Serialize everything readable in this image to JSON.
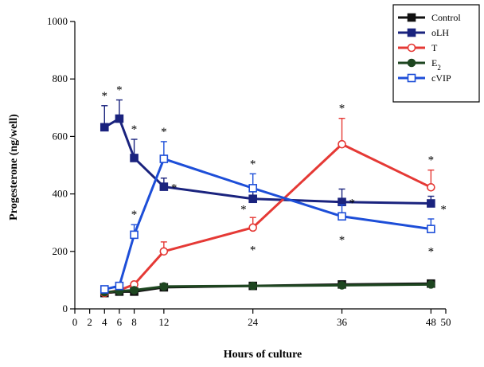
{
  "chart_data": {
    "type": "line",
    "title": "",
    "xlabel": "Hours of culture",
    "ylabel": "Progesterone (ng/well)",
    "xlim": [
      0,
      50
    ],
    "ylim": [
      0,
      1000
    ],
    "xticks": [
      0,
      2,
      4,
      6,
      8,
      12,
      24,
      36,
      48,
      50
    ],
    "yticks": [
      0,
      200,
      400,
      600,
      800,
      1000
    ],
    "xtick_labels": [
      "0",
      "2",
      "4",
      "6",
      "8",
      "12",
      "24",
      "36",
      "48",
      "50"
    ],
    "ytick_labels": [
      "0",
      "200",
      "400",
      "600",
      "800",
      "1000"
    ],
    "grid": false,
    "legend_position": "top-right",
    "series": [
      {
        "name": "Control",
        "color": "#111111",
        "marker": "filled-square",
        "x": [
          4,
          6,
          8,
          12,
          24,
          36,
          48
        ],
        "y": [
          55,
          60,
          60,
          75,
          80,
          85,
          88
        ],
        "err": [
          5,
          5,
          5,
          8,
          8,
          6,
          6
        ],
        "sig": [
          false,
          false,
          false,
          false,
          false,
          false,
          false
        ]
      },
      {
        "name": "oLH",
        "color": "#1a237e",
        "marker": "filled-square",
        "x": [
          4,
          6,
          8,
          12,
          24,
          36,
          48
        ],
        "y": [
          632,
          662,
          525,
          425,
          383,
          372,
          367
        ],
        "err": [
          75,
          65,
          65,
          30,
          25,
          45,
          25
        ],
        "sig": [
          true,
          true,
          true,
          true,
          true,
          true,
          true
        ]
      },
      {
        "name": "T",
        "color": "#e53935",
        "marker": "open-circle",
        "x": [
          4,
          6,
          8,
          12,
          24,
          36,
          48
        ],
        "y": [
          55,
          65,
          85,
          200,
          283,
          573,
          423
        ],
        "err": [
          5,
          5,
          8,
          33,
          35,
          90,
          60
        ],
        "sig": [
          false,
          false,
          false,
          false,
          true,
          true,
          true
        ]
      },
      {
        "name": "E2",
        "color": "#1e4620",
        "marker": "filled-circle",
        "x": [
          4,
          6,
          8,
          12,
          24,
          36,
          48
        ],
        "y": [
          58,
          62,
          65,
          78,
          80,
          82,
          85
        ],
        "err": [
          5,
          5,
          5,
          8,
          8,
          6,
          6
        ],
        "sig": [
          false,
          false,
          false,
          false,
          false,
          false,
          false
        ]
      },
      {
        "name": "cVIP",
        "color": "#1d4ed8",
        "marker": "open-square",
        "x": [
          4,
          6,
          8,
          12,
          24,
          36,
          48
        ],
        "y": [
          68,
          80,
          258,
          522,
          420,
          322,
          278
        ],
        "err": [
          5,
          10,
          35,
          60,
          50,
          40,
          35
        ],
        "sig": [
          false,
          false,
          true,
          true,
          true,
          true,
          true
        ]
      }
    ],
    "annotation": "*"
  }
}
